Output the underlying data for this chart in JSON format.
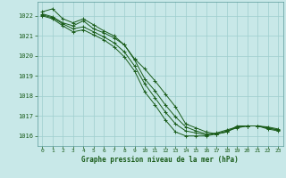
{
  "background_color": "#c8e8e8",
  "grid_color": "#9ecece",
  "line_color": "#1a5c1a",
  "title": "Graphe pression niveau de la mer (hPa)",
  "xlim": [
    -0.5,
    23.5
  ],
  "ylim": [
    1015.5,
    1022.7
  ],
  "yticks": [
    1016,
    1017,
    1018,
    1019,
    1020,
    1021,
    1022
  ],
  "xticks": [
    0,
    1,
    2,
    3,
    4,
    5,
    6,
    7,
    8,
    9,
    10,
    11,
    12,
    13,
    14,
    15,
    16,
    17,
    18,
    19,
    20,
    21,
    22,
    23
  ],
  "series": [
    [
      1022.2,
      1022.35,
      1021.85,
      1021.65,
      1021.85,
      1021.55,
      1021.25,
      1021.0,
      1020.55,
      1019.85,
      1019.35,
      1018.75,
      1018.1,
      1017.45,
      1016.6,
      1016.4,
      1016.2,
      1016.1,
      1016.2,
      1016.5,
      1016.5,
      1016.5,
      1016.45,
      1016.35
    ],
    [
      1022.1,
      1021.95,
      1021.65,
      1021.5,
      1021.75,
      1021.35,
      1021.15,
      1020.9,
      1020.55,
      1019.8,
      1018.85,
      1018.25,
      1017.55,
      1016.95,
      1016.45,
      1016.25,
      1016.1,
      1016.1,
      1016.2,
      1016.45,
      1016.5,
      1016.5,
      1016.35,
      1016.25
    ],
    [
      1022.05,
      1021.9,
      1021.6,
      1021.35,
      1021.45,
      1021.2,
      1020.95,
      1020.65,
      1020.2,
      1019.5,
      1018.6,
      1017.9,
      1017.2,
      1016.6,
      1016.25,
      1016.15,
      1016.05,
      1016.15,
      1016.3,
      1016.45,
      1016.5,
      1016.5,
      1016.4,
      1016.3
    ],
    [
      1022.0,
      1021.85,
      1021.5,
      1021.2,
      1021.3,
      1021.05,
      1020.8,
      1020.45,
      1019.95,
      1019.25,
      1018.2,
      1017.55,
      1016.8,
      1016.2,
      1016.0,
      1016.0,
      1016.0,
      1016.1,
      1016.25,
      1016.4,
      1016.5,
      1016.5,
      1016.4,
      1016.3
    ]
  ]
}
